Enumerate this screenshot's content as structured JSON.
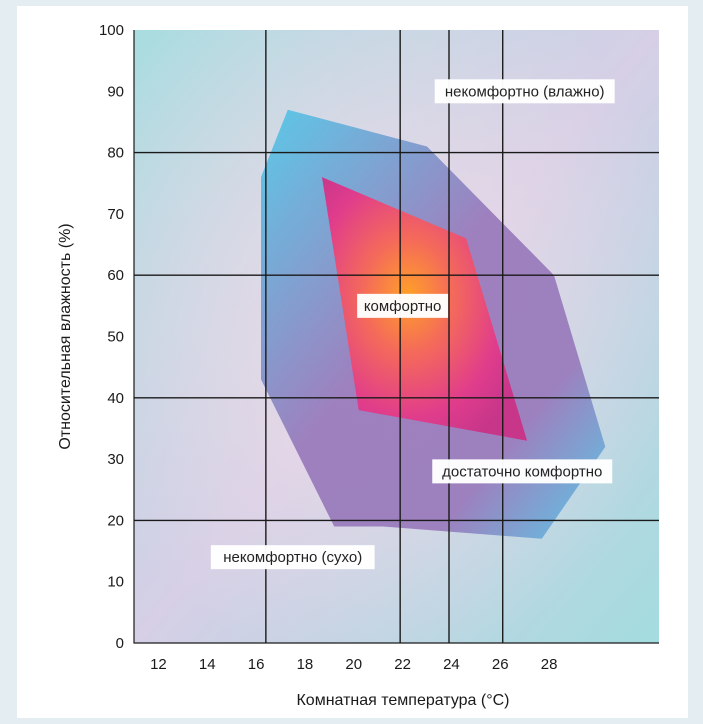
{
  "chart_data": {
    "type": "area",
    "xlabel": "Комнатная температура (°C)",
    "ylabel": "Относительная влажность (%)",
    "xlim": [
      11,
      32.5
    ],
    "ylim": [
      0,
      100
    ],
    "x_ticks": [
      12,
      14,
      16,
      18,
      20,
      22,
      24,
      26,
      28
    ],
    "y_ticks": [
      0,
      10,
      20,
      30,
      40,
      50,
      60,
      70,
      80,
      90,
      100
    ],
    "grid_x": [
      16.4,
      21.9,
      23.9,
      26.1
    ],
    "grid_y": [
      20,
      40,
      60,
      80
    ],
    "grid": true,
    "regions": [
      {
        "name": "достаточно комфортно",
        "color": "#55c8e8",
        "points": [
          [
            16.2,
            76
          ],
          [
            17.3,
            87
          ],
          [
            23.0,
            81
          ],
          [
            28.2,
            60
          ],
          [
            30.3,
            32
          ],
          [
            27.7,
            17
          ],
          [
            21.2,
            19
          ],
          [
            19.2,
            19
          ],
          [
            16.2,
            43
          ]
        ]
      },
      {
        "name": "комфортно",
        "color": "#e0408a",
        "points": [
          [
            18.7,
            76
          ],
          [
            24.6,
            66
          ],
          [
            27.1,
            33
          ],
          [
            20.2,
            38
          ]
        ]
      }
    ],
    "annotations": [
      {
        "text": "некомфортно (влажно)",
        "x": 27.0,
        "y": 90
      },
      {
        "text": "комфортно",
        "x": 22.0,
        "y": 55
      },
      {
        "text": "достаточно комфортно",
        "x": 26.9,
        "y": 28
      },
      {
        "text": "некомфортно (сухо)",
        "x": 17.5,
        "y": 14
      }
    ]
  },
  "colors": {
    "background": "#e4eef2",
    "outer_zone": "#9ad2dc",
    "mid_zone": "#55c8e8",
    "mid_zone_overlay": "#9a78b8",
    "inner_zone": "#e0408a",
    "inner_core": "#ffa028",
    "grid": "#1a1a1a"
  }
}
